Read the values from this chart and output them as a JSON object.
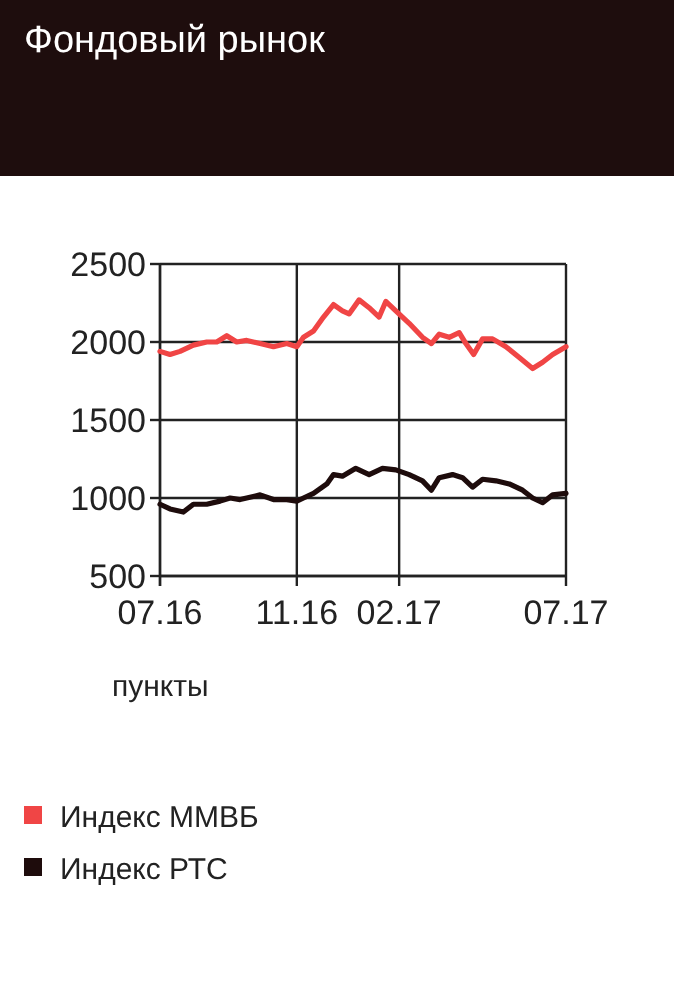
{
  "chart_data": {
    "type": "line",
    "title": "Фондовый рынок",
    "ylabel": "пункты",
    "xlim": [
      "2016-07-01",
      "2017-07-01"
    ],
    "xticks": [
      {
        "value": "2016-07-01",
        "label": "07.16"
      },
      {
        "value": "2016-11-01",
        "label": "11.16"
      },
      {
        "value": "2017-02-01",
        "label": "02.17"
      },
      {
        "value": "2017-07-01",
        "label": "07.17"
      }
    ],
    "ylim": [
      500,
      2500
    ],
    "yticks": [
      500,
      1000,
      1500,
      2000,
      2500
    ],
    "grid": true,
    "legend": "bottom left",
    "marker": "none",
    "line_style": "solid",
    "series": [
      {
        "name": "Индекс ММВБ",
        "color": "#f04545",
        "x": [
          "2016-07-01",
          "2016-07-10",
          "2016-07-19",
          "2016-07-31",
          "2016-08-12",
          "2016-08-21",
          "2016-08-30",
          "2016-09-08",
          "2016-09-17",
          "2016-09-29",
          "2016-10-11",
          "2016-10-23",
          "2016-11-01",
          "2016-11-07",
          "2016-11-16",
          "2016-11-25",
          "2016-12-04",
          "2016-12-12",
          "2016-12-18",
          "2016-12-27",
          "2017-01-05",
          "2017-01-14",
          "2017-01-20",
          "2017-01-29",
          "2017-02-10",
          "2017-02-22",
          "2017-03-02",
          "2017-03-09",
          "2017-03-18",
          "2017-03-27",
          "2017-04-02",
          "2017-04-09",
          "2017-04-17",
          "2017-04-26",
          "2017-05-08",
          "2017-05-20",
          "2017-06-01",
          "2017-06-10",
          "2017-06-19",
          "2017-07-01"
        ],
        "values": [
          1940,
          1920,
          1940,
          1980,
          2000,
          2000,
          2040,
          2000,
          2010,
          1990,
          1970,
          1990,
          1970,
          2030,
          2070,
          2160,
          2240,
          2200,
          2180,
          2270,
          2220,
          2160,
          2260,
          2200,
          2120,
          2030,
          1990,
          2050,
          2030,
          2060,
          1990,
          1920,
          2020,
          2020,
          1970,
          1900,
          1830,
          1870,
          1920,
          1970
        ]
      },
      {
        "name": "Индекс РТС",
        "color": "#1e0c0c",
        "x": [
          "2016-07-01",
          "2016-07-10",
          "2016-07-22",
          "2016-07-31",
          "2016-08-12",
          "2016-08-24",
          "2016-09-02",
          "2016-09-11",
          "2016-09-29",
          "2016-10-11",
          "2016-10-23",
          "2016-11-01",
          "2016-11-07",
          "2016-11-16",
          "2016-11-28",
          "2016-12-04",
          "2016-12-12",
          "2016-12-24",
          "2017-01-05",
          "2017-01-17",
          "2017-01-29",
          "2017-02-10",
          "2017-02-22",
          "2017-03-02",
          "2017-03-09",
          "2017-03-21",
          "2017-03-30",
          "2017-04-08",
          "2017-04-17",
          "2017-04-29",
          "2017-05-11",
          "2017-05-23",
          "2017-06-01",
          "2017-06-10",
          "2017-06-19",
          "2017-07-01"
        ],
        "values": [
          960,
          930,
          910,
          960,
          960,
          980,
          1000,
          990,
          1020,
          990,
          990,
          980,
          1000,
          1030,
          1090,
          1150,
          1140,
          1190,
          1150,
          1190,
          1180,
          1150,
          1110,
          1050,
          1130,
          1150,
          1130,
          1070,
          1120,
          1110,
          1090,
          1050,
          1000,
          970,
          1020,
          1030
        ]
      }
    ]
  }
}
